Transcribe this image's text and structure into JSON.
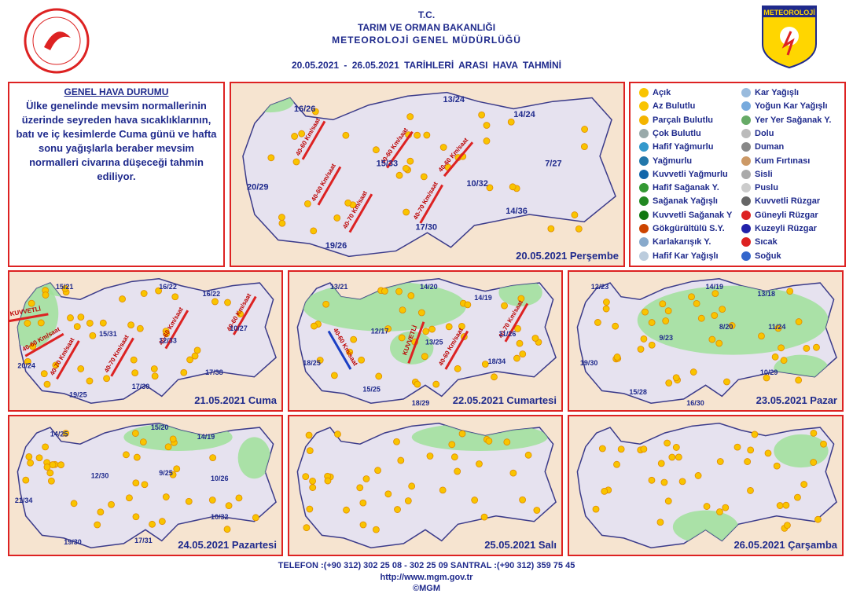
{
  "header": {
    "line1": "T.C.",
    "line2": "TARIM VE ORMAN BAKANLIĞI",
    "line3": "METEOROLOJİ GENEL MÜDÜRLÜĞÜ",
    "period": "20.05.2021 - 26.05.2021 TARİHLERİ ARASI HAVA TAHMİNİ",
    "logo": "METEOROLOJİ"
  },
  "general": {
    "title": "GENEL HAVA DURUMU",
    "text": "Ülke genelinde mevsim normallerinin üzerinde seyreden hava sıcaklıklarının, batı ve iç kesimlerde Cuma günü ve hafta sonu yağışlarla beraber mevsim normalleri civarına düşeceği tahmin ediliyor."
  },
  "legend": {
    "items": [
      "Açık",
      "Az Bulutlu",
      "Parçalı Bulutlu",
      "Çok Bulutlu",
      "Hafif Yağmurlu",
      "Yağmurlu",
      "Kuvvetli Yağmurlu",
      "Hafif Sağanak Y.",
      "Sağanak Yağışlı",
      "Kuvvetli Sağanak Y",
      "Gökgürültülü S.Y.",
      "Karlakarışık Y.",
      "Hafif Kar Yağışlı",
      "Kar Yağışlı",
      "Yoğun Kar Yağışlı",
      "Yer Yer Sağanak Y.",
      "Dolu",
      "Duman",
      "Kum Fırtınası",
      "Sisli",
      "Puslu",
      "Kuvvetli Rüzgar",
      "Güneyli Rüzgar",
      "Kuzeyli Rüzgar",
      "Sıcak",
      "Soğuk"
    ]
  },
  "maps": [
    {
      "date": "20.05.2021 Perşembe",
      "temps": [
        "16/26",
        "13/24",
        "14/24",
        "15/33",
        "7/27",
        "20/29",
        "10/32",
        "14/36",
        "17/30",
        "19/26"
      ],
      "winds": [
        "40-60 Km/saat",
        "40-60 Km/saat",
        "40-60 Km/saat",
        "40-70 Km/saat",
        "40-70 Km/saat",
        "40-60 Km/saat"
      ]
    },
    {
      "date": "21.05.2021 Cuma",
      "temps": [
        "15/21",
        "16/22",
        "16/22",
        "15/31",
        "12/33",
        "10/27",
        "20/24",
        "17/38",
        "17/30",
        "19/25"
      ],
      "winds": [
        "KUVVETLİ",
        "40-60 Km/saat",
        "40-70 Km/saat",
        "40-70 Km/saat",
        "40-60 Km/saat",
        "40-60 Km/saat"
      ]
    },
    {
      "date": "22.05.2021 Cumartesi",
      "temps": [
        "13/21",
        "14/20",
        "14/19",
        "12/17",
        "11/26",
        "13/25",
        "18/25",
        "18/34",
        "15/25",
        "18/29"
      ],
      "winds": [
        "40-60 Km/saat",
        "KUVVETLİ",
        "40-60 Km/saat",
        "40-70 Km/saat"
      ]
    },
    {
      "date": "23.05.2021 Pazar",
      "temps": [
        "12/23",
        "14/19",
        "13/18",
        "8/20",
        "11/24",
        "9/23",
        "19/30",
        "10/29",
        "15/28",
        "16/30"
      ],
      "winds": []
    },
    {
      "date": "24.05.2021 Pazartesi",
      "temps": [
        "15/20",
        "14/25",
        "14/19",
        "12/30",
        "9/25",
        "10/26",
        "21/34",
        "10/32",
        "19/30",
        "17/31"
      ],
      "winds": []
    },
    {
      "date": "25.05.2021 Salı",
      "temps": [],
      "winds": []
    },
    {
      "date": "26.05.2021 Çarşamba",
      "temps": [],
      "winds": []
    }
  ],
  "footer": {
    "phone": "TELEFON :(+90 312) 302 25 08 - 302 25 09 SANTRAL :(+90 312) 359 75 45",
    "url": "http://www.mgm.gov.tr",
    "copy": "©MGM"
  }
}
